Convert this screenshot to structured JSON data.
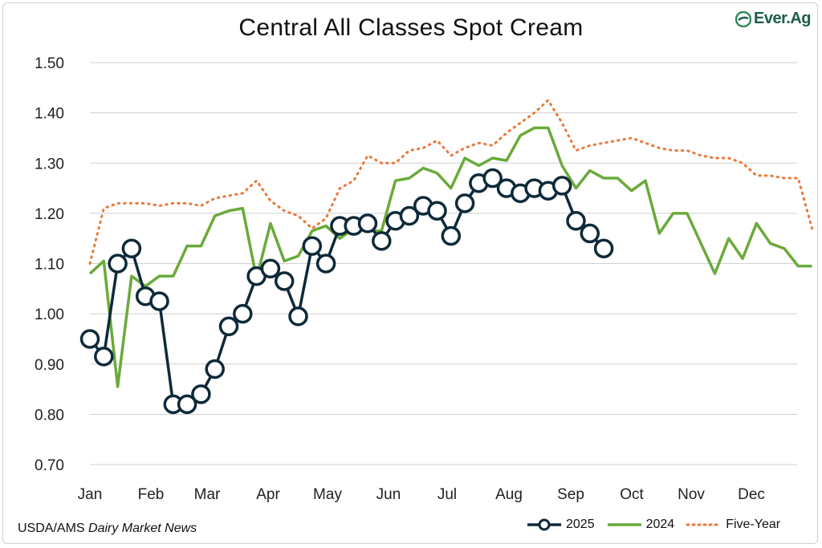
{
  "title": "Central All Classes Spot Cream",
  "logo_text": "Ever.Ag",
  "source": {
    "prefix": "USDA/AMS ",
    "italic": "Dairy Market News"
  },
  "colors": {
    "s2025": "#0e2a3a",
    "s2024": "#6aaa3a",
    "five_year": "#e8793a",
    "grid": "#cfcfcf"
  },
  "chart_data": {
    "type": "line",
    "title": "Central All Classes Spot Cream",
    "xlabel": "",
    "ylabel": "",
    "ylim": [
      0.7,
      1.5
    ],
    "yticks": [
      "0.70",
      "0.80",
      "0.90",
      "1.00",
      "1.10",
      "1.20",
      "1.30",
      "1.40",
      "1.50"
    ],
    "months": [
      "Jan",
      "Feb",
      "Mar",
      "Apr",
      "May",
      "Jun",
      "Jul",
      "Aug",
      "Sep",
      "Oct",
      "Nov",
      "Dec"
    ],
    "grid": true,
    "legend": "bottom-right",
    "series": [
      {
        "name": "2025",
        "style": "line-markers",
        "x": [
          1,
          2,
          3,
          4,
          5,
          6,
          7,
          8,
          9,
          10,
          11,
          12,
          13,
          14,
          15,
          16,
          17,
          18,
          19,
          20,
          21,
          22,
          23,
          24,
          25,
          26,
          27,
          28,
          29,
          30,
          31,
          32,
          33,
          34,
          35,
          36,
          37,
          38
        ],
        "values": [
          0.95,
          0.915,
          1.1,
          1.13,
          1.035,
          1.025,
          0.82,
          0.82,
          0.84,
          0.89,
          0.975,
          1.0,
          1.075,
          1.09,
          1.065,
          0.995,
          1.135,
          1.1,
          1.175,
          1.175,
          1.18,
          1.145,
          1.185,
          1.195,
          1.215,
          1.205,
          1.155,
          1.22,
          1.26,
          1.27,
          1.25,
          1.24,
          1.25,
          1.245,
          1.255,
          1.185,
          1.16,
          1.13
        ]
      },
      {
        "name": "2024",
        "style": "line",
        "x": [
          1,
          2,
          3,
          4,
          5,
          6,
          7,
          8,
          9,
          10,
          11,
          12,
          13,
          14,
          15,
          16,
          17,
          18,
          19,
          20,
          21,
          22,
          23,
          24,
          25,
          26,
          27,
          28,
          29,
          30,
          31,
          32,
          33,
          34,
          35,
          36,
          37,
          38,
          39,
          40,
          41,
          42,
          43,
          44,
          45,
          46,
          47,
          48,
          49,
          50,
          51,
          52,
          53
        ],
        "values": [
          1.08,
          1.105,
          0.855,
          1.075,
          1.055,
          1.075,
          1.075,
          1.135,
          1.135,
          1.195,
          1.205,
          1.21,
          1.07,
          1.18,
          1.105,
          1.115,
          1.165,
          1.175,
          1.15,
          1.17,
          1.165,
          1.165,
          1.265,
          1.27,
          1.29,
          1.28,
          1.25,
          1.31,
          1.295,
          1.31,
          1.305,
          1.355,
          1.37,
          1.37,
          1.295,
          1.25,
          1.285,
          1.27,
          1.27,
          1.245,
          1.265,
          1.16,
          1.2,
          1.2,
          1.14,
          1.08,
          1.15,
          1.11,
          1.18,
          1.14,
          1.13,
          1.095,
          1.095
        ]
      },
      {
        "name": "Five-Year",
        "style": "dotted",
        "x": [
          1,
          2,
          3,
          4,
          5,
          6,
          7,
          8,
          9,
          10,
          11,
          12,
          13,
          14,
          15,
          16,
          17,
          18,
          19,
          20,
          21,
          22,
          23,
          24,
          25,
          26,
          27,
          28,
          29,
          30,
          31,
          32,
          33,
          34,
          35,
          36,
          37,
          38,
          39,
          40,
          41,
          42,
          43,
          44,
          45,
          46,
          47,
          48,
          49,
          50,
          51,
          52,
          53
        ],
        "values": [
          1.1,
          1.21,
          1.22,
          1.22,
          1.22,
          1.215,
          1.22,
          1.22,
          1.215,
          1.23,
          1.235,
          1.24,
          1.265,
          1.225,
          1.205,
          1.195,
          1.17,
          1.19,
          1.25,
          1.265,
          1.315,
          1.3,
          1.3,
          1.325,
          1.33,
          1.345,
          1.315,
          1.33,
          1.34,
          1.335,
          1.36,
          1.38,
          1.4,
          1.425,
          1.38,
          1.325,
          1.335,
          1.34,
          1.345,
          1.35,
          1.34,
          1.33,
          1.325,
          1.325,
          1.315,
          1.31,
          1.31,
          1.3,
          1.275,
          1.275,
          1.27,
          1.27,
          1.17
        ]
      }
    ]
  }
}
